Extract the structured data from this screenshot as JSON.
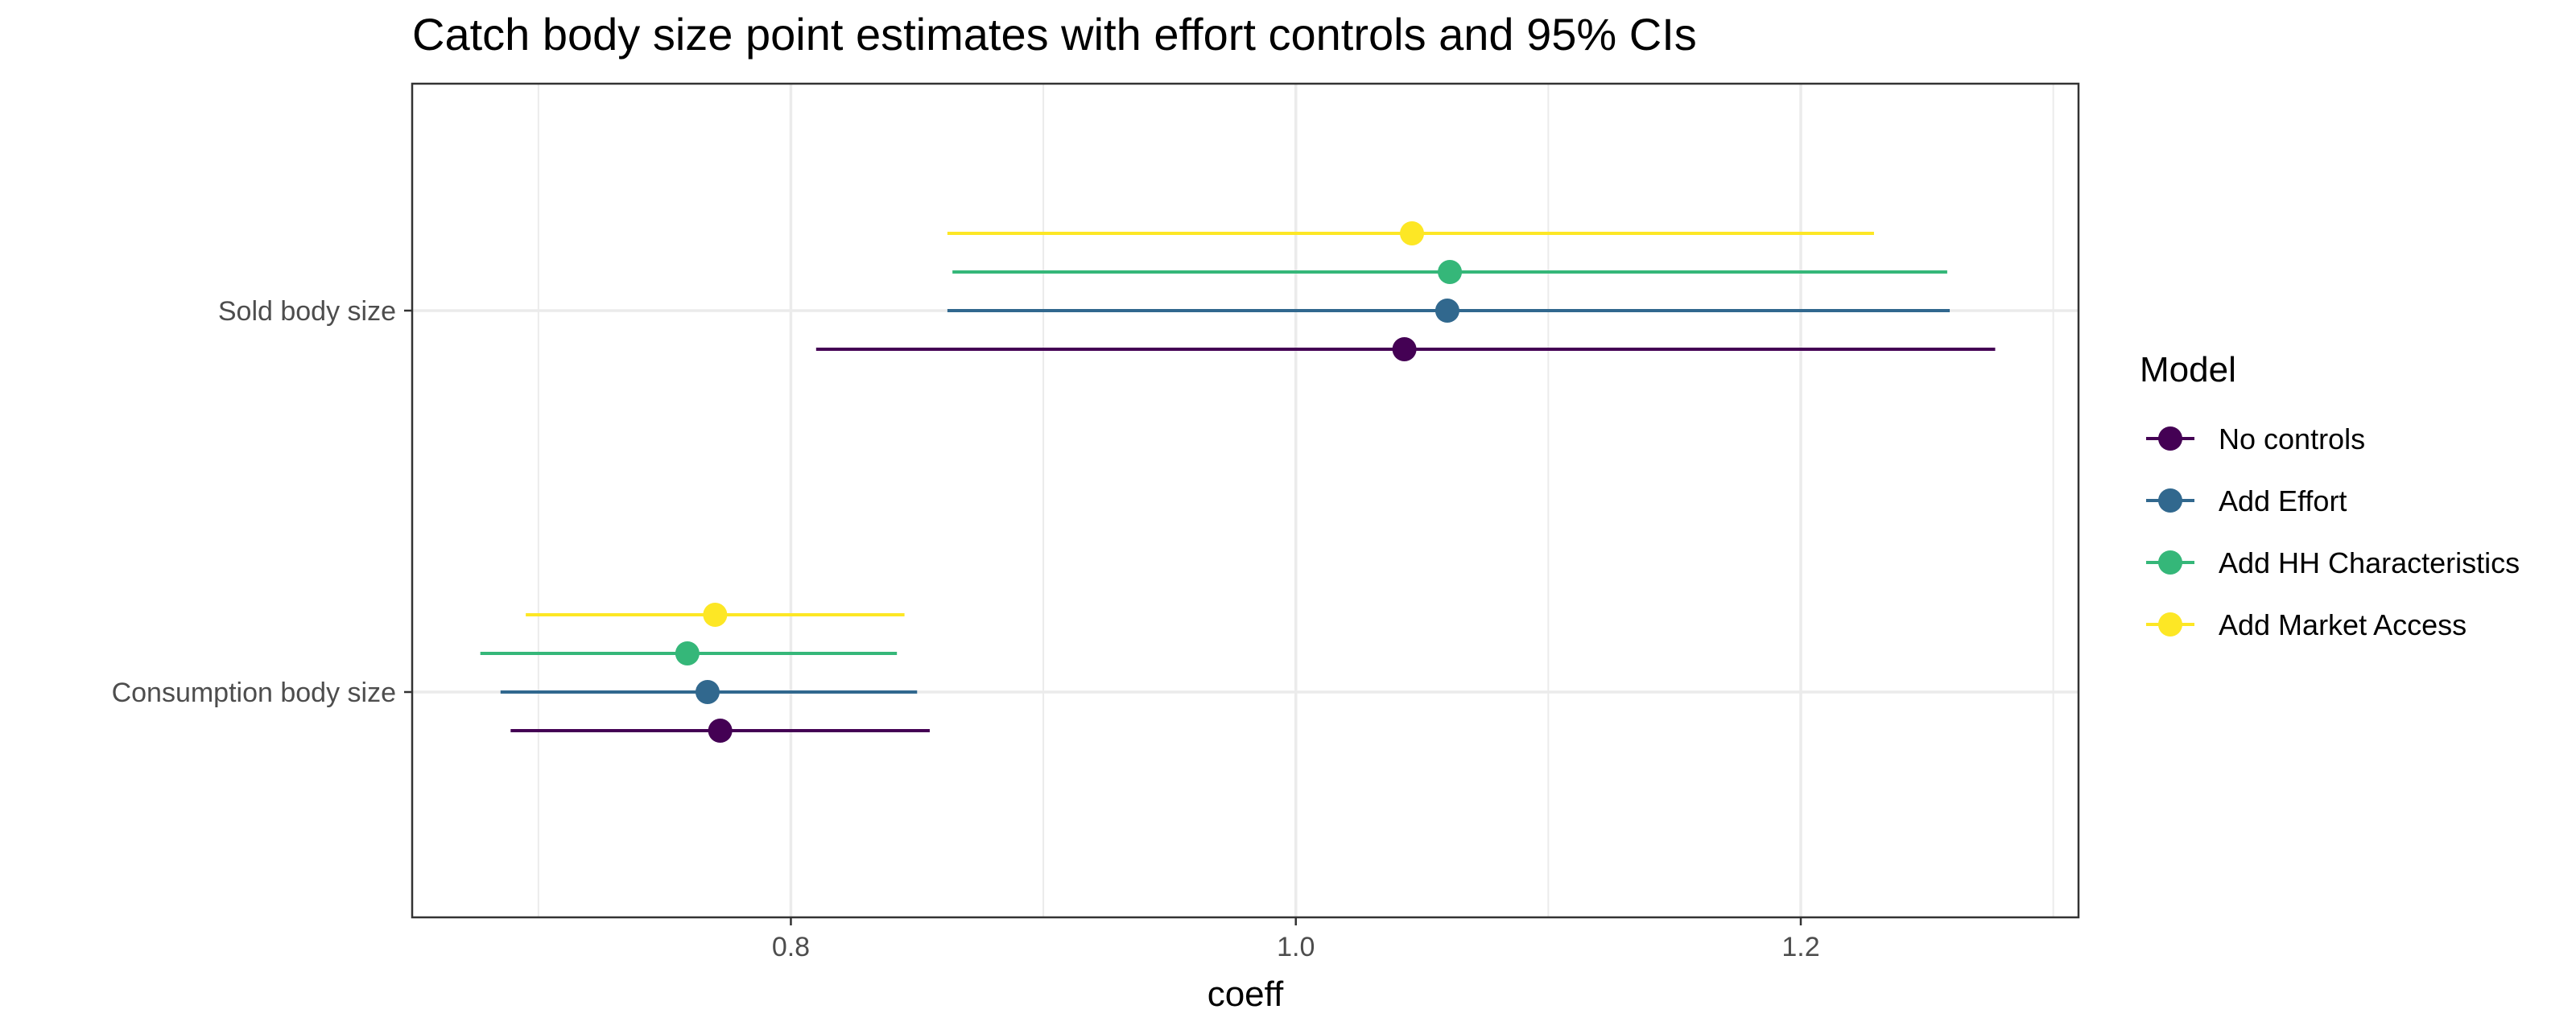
{
  "chart_data": {
    "type": "forest",
    "title": "Catch body size point estimates with effort controls and 95% CIs",
    "xlabel": "coeff",
    "ylabel": "",
    "xlim": [
      0.65,
      1.31
    ],
    "xticks": [
      0.8,
      1.0,
      1.2
    ],
    "x_tick_labels": [
      "0.8",
      "1.0",
      "1.2"
    ],
    "categories": [
      "Sold body size",
      "Consumption body size"
    ],
    "grid": true,
    "legend": {
      "title": "Model",
      "position": "right"
    },
    "series": [
      {
        "name": "No controls",
        "color": "#440154",
        "points": [
          {
            "category": "Sold body size",
            "estimate": 1.043,
            "ci_low": 0.81,
            "ci_high": 1.277
          },
          {
            "category": "Consumption body size",
            "estimate": 0.772,
            "ci_low": 0.689,
            "ci_high": 0.855
          }
        ]
      },
      {
        "name": "Add Effort",
        "color": "#31688E",
        "points": [
          {
            "category": "Sold body size",
            "estimate": 1.06,
            "ci_low": 0.862,
            "ci_high": 1.259
          },
          {
            "category": "Consumption body size",
            "estimate": 0.767,
            "ci_low": 0.685,
            "ci_high": 0.85
          }
        ]
      },
      {
        "name": "Add HH Characteristics",
        "color": "#35B779",
        "points": [
          {
            "category": "Sold body size",
            "estimate": 1.061,
            "ci_low": 0.864,
            "ci_high": 1.258
          },
          {
            "category": "Consumption body size",
            "estimate": 0.759,
            "ci_low": 0.677,
            "ci_high": 0.842
          }
        ]
      },
      {
        "name": "Add Market Access",
        "color": "#FDE725",
        "points": [
          {
            "category": "Sold body size",
            "estimate": 1.046,
            "ci_low": 0.862,
            "ci_high": 1.229
          },
          {
            "category": "Consumption body size",
            "estimate": 0.77,
            "ci_low": 0.695,
            "ci_high": 0.845
          }
        ]
      }
    ]
  }
}
